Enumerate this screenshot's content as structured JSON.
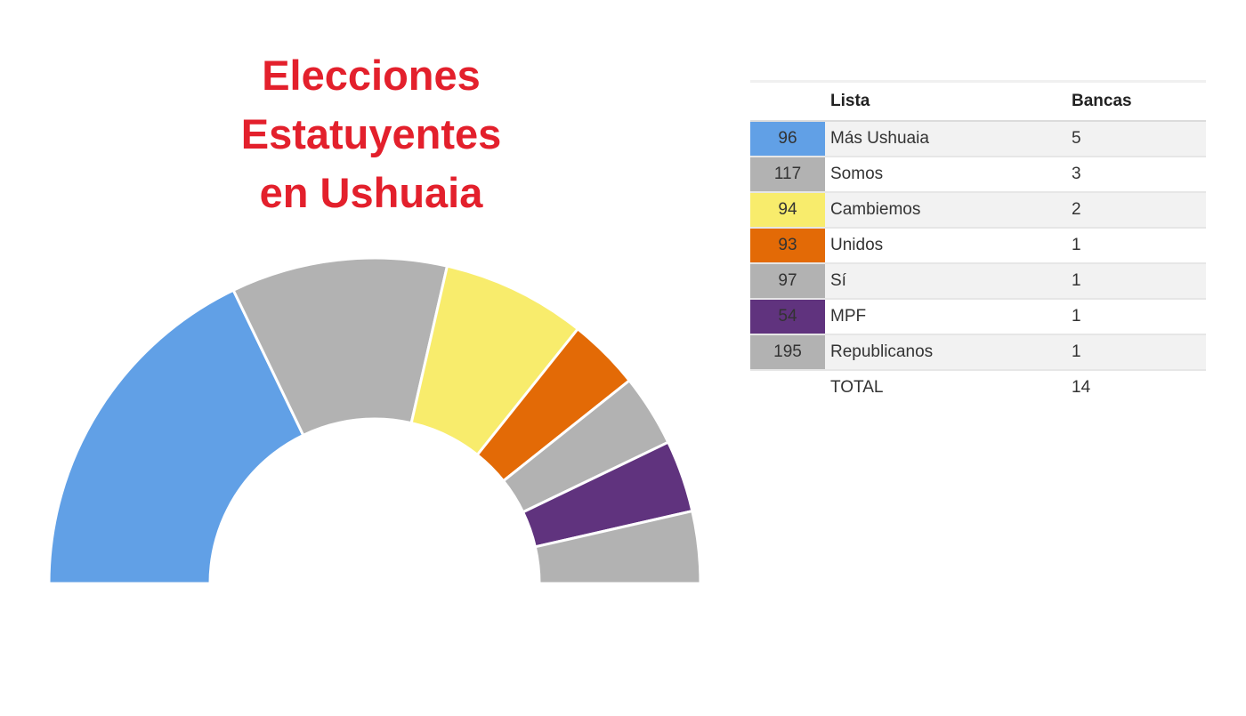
{
  "title_lines": [
    "Elecciones",
    "Estatuyentes",
    "en Ushuaia"
  ],
  "table": {
    "headers": {
      "code": "",
      "list": "Lista",
      "seats": "Bancas"
    },
    "rows": [
      {
        "code": "96",
        "name": "Más Ushuaia",
        "seats": "5",
        "color": "#61a0e6"
      },
      {
        "code": "117",
        "name": "Somos",
        "seats": "3",
        "color": "#b2b2b2"
      },
      {
        "code": "94",
        "name": "Cambiemos",
        "seats": "2",
        "color": "#f8ec6c"
      },
      {
        "code": "93",
        "name": "Unidos",
        "seats": "1",
        "color": "#e36a06"
      },
      {
        "code": "97",
        "name": "Sí",
        "seats": "1",
        "color": "#b2b2b2"
      },
      {
        "code": "54",
        "name": "MPF",
        "seats": "1",
        "color": "#60337e"
      },
      {
        "code": "195",
        "name": "Republicanos",
        "seats": "1",
        "color": "#b2b2b2"
      }
    ],
    "total_label": "TOTAL",
    "total_value": "14"
  },
  "chart_data": {
    "type": "pie",
    "variant": "semicircle-donut",
    "title": "Elecciones Estatuyentes en Ushuaia",
    "categories": [
      "Más Ushuaia",
      "Somos",
      "Cambiemos",
      "Unidos",
      "Sí",
      "MPF",
      "Republicanos"
    ],
    "values": [
      5,
      3,
      2,
      1,
      1,
      1,
      1
    ],
    "colors": [
      "#61a0e6",
      "#b2b2b2",
      "#f8ec6c",
      "#e36a06",
      "#b2b2b2",
      "#60337e",
      "#b2b2b2"
    ],
    "total": 14
  }
}
